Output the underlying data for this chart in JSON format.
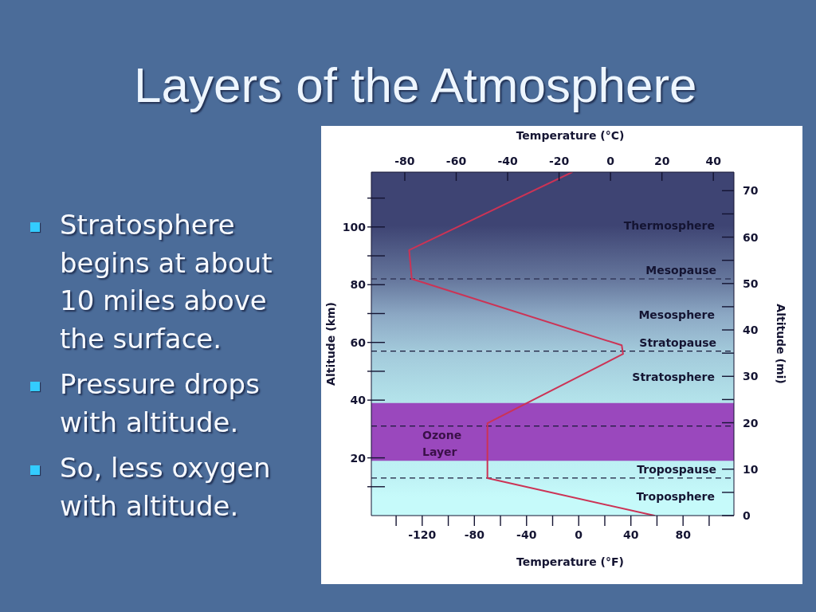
{
  "chart_data": {
    "type": "line",
    "title": "Layers of the Atmosphere",
    "xlabel": "Temperature (°F)",
    "ylabel": "Altitude (km)",
    "x2label": "Temperature (°C)",
    "y2label": "Altitude (mi)",
    "annotations": [
      "Stratosphere begins at about 10 miles above the surface.",
      "Pressure drops with altitude.",
      "So, less oxygen with altitude."
    ],
    "x": [
      58,
      -70,
      -70,
      34,
      33,
      -128,
      -130,
      -5
    ],
    "series": [
      {
        "color": "#cc3355",
        "values": [
          0,
          13,
          32,
          56,
          59,
          82,
          92,
          119
        ]
      }
    ],
    "xlim": [
      -159,
      119
    ],
    "xticks": [
      {
        "value": -140,
        "label": null
      },
      -120,
      {
        "value": -100,
        "label": null
      },
      -80,
      {
        "value": -60,
        "label": null
      },
      -40,
      {
        "value": -20,
        "label": null
      },
      0,
      {
        "value": 20,
        "label": null
      },
      40,
      {
        "value": 60,
        "label": null
      },
      80,
      {
        "value": 100,
        "label": null
      }
    ],
    "x2lim": [
      -93,
      48
    ],
    "x2ticks": [
      -80,
      -60,
      -40,
      -20,
      0,
      20,
      40
    ],
    "ylim": [
      0,
      119
    ],
    "yticks": [
      {
        "value": 10,
        "label": null
      },
      20,
      40,
      {
        "value": 50,
        "label": null
      },
      60,
      {
        "value": 70,
        "label": null
      },
      80,
      {
        "value": 90,
        "label": null
      },
      100,
      {
        "value": 110,
        "label": null
      }
    ],
    "y2lim": [
      0,
      74
    ],
    "y2ticks": [
      0,
      {
        "value": 5,
        "label": null
      },
      10,
      20,
      {
        "value": 25,
        "label": null
      },
      30,
      {
        "value": 35,
        "label": null
      },
      40,
      {
        "value": 45,
        "label": null
      },
      50,
      {
        "value": 55,
        "label": null
      },
      60,
      {
        "value": 65,
        "label": null
      },
      70
    ],
    "bands": [
      {
        "axis": "y",
        "from": 0,
        "to": 13,
        "label": "Troposphere",
        "color": "#c6fafa"
      },
      {
        "axis": "y",
        "from": 13,
        "to": 57,
        "label": "Stratosphere",
        "color": "#b8eaef"
      },
      {
        "axis": "y",
        "from": 57,
        "to": 82,
        "label": "Mesosphere",
        "color": "#8ca8c4"
      },
      {
        "axis": "y",
        "from": 82,
        "to": 119,
        "label": "Thermosphere",
        "color": "#3e4473"
      },
      {
        "axis": "y",
        "from": 19,
        "to": 39,
        "label": "Ozone Layer",
        "color": "#9a48bd"
      }
    ],
    "ref_lines": [
      {
        "axis": "y",
        "value": 13,
        "label": "Tropospause",
        "color": "#1a1a3a",
        "line_style": "dashed"
      },
      {
        "axis": "y",
        "value": 31,
        "color": "#1a1a3a",
        "line_style": "dashed"
      },
      {
        "axis": "y",
        "value": 57,
        "label": "Stratopause",
        "color": "#1a1a3a",
        "line_style": "dashed"
      },
      {
        "axis": "y",
        "value": 82,
        "label": "Mesopause",
        "color": "#1a1a3a",
        "line_style": "dashed"
      }
    ],
    "marker": "none",
    "line_style": "solid"
  }
}
